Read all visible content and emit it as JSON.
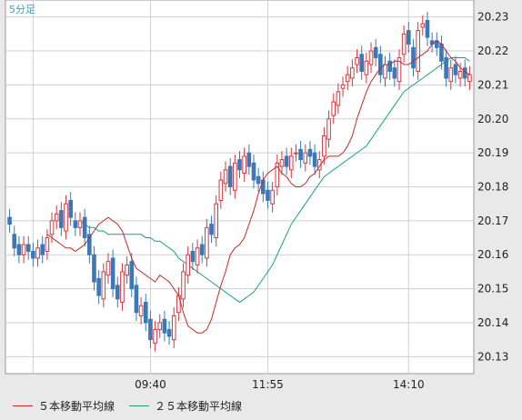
{
  "chart_data": {
    "type": "candlestick",
    "timeframe_label": "5分足",
    "x_tick_labels": [
      "09:40",
      "11:55",
      "14:10"
    ],
    "y_ticks": [
      20.13,
      20.14,
      20.15,
      20.16,
      20.17,
      20.18,
      20.19,
      20.2,
      20.21,
      20.22,
      20.23
    ],
    "y_tick_labels": [
      "20.13",
      "20.14",
      "20.15",
      "20.16",
      "20.17",
      "20.18",
      "20.19",
      "20.20",
      "20.21",
      "20.22",
      "20.23"
    ],
    "ylim": [
      20.125,
      20.235
    ],
    "grid": true,
    "colors": {
      "up": "#d9363e",
      "down": "#3a78b8",
      "ma5": "#c62828",
      "ma25": "#16a08a",
      "grid": "#cfcfcf",
      "plot_bg": "#ffffff"
    },
    "legend": [
      {
        "label": "５本移動平均線",
        "color": "#c62828"
      },
      {
        "label": "２５本移動平均線",
        "color": "#16a08a"
      }
    ],
    "closes": [
      20.169,
      20.162,
      20.16,
      20.163,
      20.161,
      20.159,
      20.162,
      20.16,
      20.165,
      20.17,
      20.172,
      20.168,
      20.175,
      20.171,
      20.168,
      20.17,
      20.165,
      20.16,
      20.152,
      20.148,
      20.155,
      20.158,
      20.15,
      20.147,
      20.155,
      20.157,
      20.15,
      20.143,
      20.145,
      20.14,
      20.135,
      20.138,
      20.14,
      20.137,
      20.136,
      20.142,
      20.148,
      20.155,
      20.16,
      20.158,
      20.162,
      20.16,
      20.168,
      20.166,
      20.175,
      20.182,
      20.185,
      20.18,
      20.187,
      20.185,
      20.189,
      20.186,
      20.182,
      20.181,
      20.178,
      20.176,
      20.179,
      20.187,
      20.188,
      20.186,
      20.189,
      20.19,
      20.188,
      20.19,
      20.189,
      20.186,
      20.188,
      20.195,
      20.2,
      20.205,
      20.208,
      20.21,
      20.213,
      20.215,
      20.218,
      20.214,
      20.217,
      20.22,
      20.218,
      20.213,
      20.216,
      20.214,
      20.212,
      20.218,
      20.225,
      20.222,
      20.215,
      20.226,
      20.228,
      20.224,
      20.222,
      20.221,
      20.217,
      20.212,
      20.215,
      20.213,
      20.214,
      20.212,
      20.213
    ],
    "opens": [
      20.171,
      20.166,
      20.163,
      20.16,
      20.163,
      20.161,
      20.159,
      20.163,
      20.161,
      20.166,
      20.17,
      20.173,
      20.167,
      20.176,
      20.17,
      20.168,
      20.171,
      20.166,
      20.16,
      20.153,
      20.147,
      20.154,
      20.159,
      20.151,
      20.146,
      20.154,
      20.158,
      20.151,
      20.142,
      20.146,
      20.141,
      20.134,
      20.138,
      20.141,
      20.138,
      20.135,
      20.143,
      20.147,
      20.154,
      20.161,
      20.157,
      20.163,
      20.159,
      20.169,
      20.165,
      20.176,
      20.181,
      20.186,
      20.179,
      20.188,
      20.184,
      20.19,
      20.187,
      20.183,
      20.182,
      20.179,
      20.175,
      20.18,
      20.186,
      20.189,
      20.185,
      20.19,
      20.191,
      20.187,
      20.191,
      20.19,
      20.185,
      20.189,
      20.194,
      20.201,
      20.204,
      20.209,
      20.211,
      20.212,
      20.216,
      20.219,
      20.213,
      20.216,
      20.221,
      20.219,
      20.212,
      20.217,
      20.215,
      20.211,
      20.219,
      20.226,
      20.221,
      20.214,
      20.227,
      20.229,
      20.223,
      20.223,
      20.222,
      20.218,
      20.211,
      20.216,
      20.212,
      20.215,
      20.211
    ],
    "ma5": [
      20.166,
      20.165,
      20.164,
      20.163,
      20.162,
      20.162,
      20.161,
      20.162,
      20.163,
      20.165,
      20.167,
      20.169,
      20.17,
      20.171,
      20.17,
      20.169,
      20.167,
      20.163,
      20.159,
      20.156,
      20.155,
      20.154,
      20.153,
      20.152,
      20.154,
      20.153,
      20.152,
      20.15,
      20.148,
      20.143,
      20.139,
      20.138,
      20.137,
      20.137,
      20.138,
      20.141,
      20.146,
      20.151,
      20.155,
      20.16,
      20.162,
      20.163,
      20.165,
      20.169,
      20.173,
      20.178,
      20.182,
      20.184,
      20.185,
      20.186,
      20.184,
      20.183,
      20.181,
      20.18,
      20.18,
      20.181,
      20.183,
      20.184,
      20.186,
      20.188,
      20.189,
      20.189,
      20.189,
      20.19,
      20.192,
      20.195,
      20.2,
      20.204,
      20.208,
      20.211,
      20.213,
      20.215,
      20.216,
      20.216,
      20.217,
      20.217,
      20.216,
      20.216,
      20.217,
      20.218,
      20.219,
      20.22,
      20.222,
      20.223,
      20.222,
      20.22,
      20.218,
      20.217,
      20.215,
      20.214,
      20.213
    ],
    "ma25": [
      20.17,
      20.169,
      20.168,
      20.168,
      20.167,
      20.167,
      20.166,
      20.166,
      20.166,
      20.166,
      20.166,
      20.166,
      20.166,
      20.166,
      20.165,
      20.165,
      20.164,
      20.164,
      20.163,
      20.162,
      20.161,
      20.159,
      20.158,
      20.157,
      20.156,
      20.155,
      20.154,
      20.153,
      20.152,
      20.151,
      20.15,
      20.149,
      20.148,
      20.147,
      20.146,
      20.147,
      20.148,
      20.149,
      20.151,
      20.153,
      20.155,
      20.157,
      20.16,
      20.163,
      20.166,
      20.169,
      20.171,
      20.173,
      20.175,
      20.177,
      20.179,
      20.181,
      20.183,
      20.184,
      20.185,
      20.186,
      20.187,
      20.188,
      20.189,
      20.19,
      20.191,
      20.192,
      20.194,
      20.196,
      20.198,
      20.2,
      20.202,
      20.204,
      20.206,
      20.208,
      20.209,
      20.21,
      20.211,
      20.212,
      20.213,
      20.214,
      20.215,
      20.216,
      20.217,
      20.218,
      20.218,
      20.218,
      20.218,
      20.217
    ]
  }
}
